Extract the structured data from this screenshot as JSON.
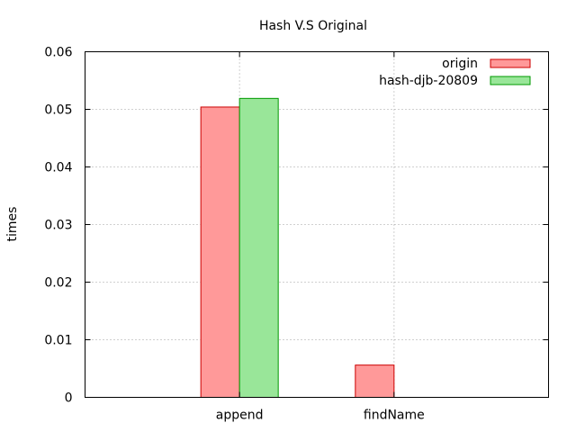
{
  "chart_data": {
    "type": "bar",
    "title": "Hash V.S Original",
    "xlabel": "",
    "ylabel": "times",
    "categories": [
      "append",
      "findName"
    ],
    "series": [
      {
        "name": "origin",
        "values": [
          0.0504,
          0.0056
        ],
        "color": "#ff9999",
        "stroke": "#cc0000"
      },
      {
        "name": "hash-djb-20809",
        "values": [
          0.0519,
          0.0
        ],
        "color": "#99e699",
        "stroke": "#009900"
      }
    ],
    "ylim": [
      0,
      0.06
    ],
    "yticks": [
      "0",
      "0.01",
      "0.02",
      "0.03",
      "0.04",
      "0.05",
      "0.06"
    ],
    "grid": true,
    "legend_position": "top-right"
  }
}
